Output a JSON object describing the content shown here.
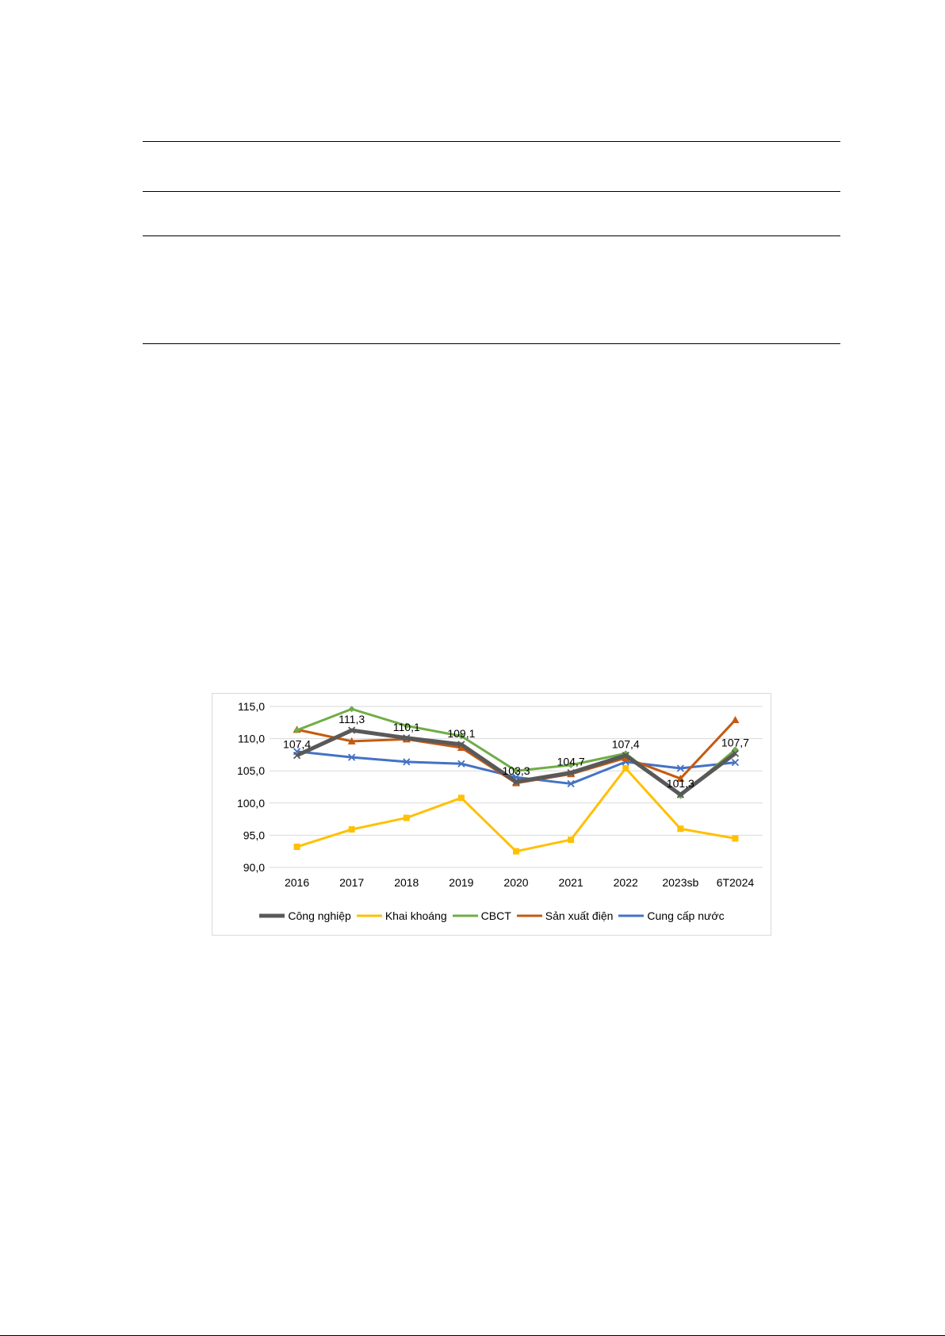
{
  "chart_data": {
    "type": "line",
    "categories": [
      "2016",
      "2017",
      "2018",
      "2019",
      "2020",
      "2021",
      "2022",
      "2023sb",
      "6T2024"
    ],
    "ylim": [
      90,
      115
    ],
    "yticks": [
      "90,0",
      "95,0",
      "100,0",
      "105,0",
      "110,0",
      "115,0"
    ],
    "grid": true,
    "legend_position": "bottom",
    "series": [
      {
        "name": "Công nghiệp",
        "color": "#595959",
        "marker": "x",
        "values": [
          107.4,
          111.3,
          110.1,
          109.1,
          103.3,
          104.7,
          107.4,
          101.3,
          107.7
        ],
        "labels": [
          "107,4",
          "111,3",
          "110,1",
          "109,1",
          "103,3",
          "104,7",
          "107,4",
          "101,3",
          "107,7"
        ]
      },
      {
        "name": "Khai khoáng",
        "color": "#ffc000",
        "marker": "square",
        "values": [
          93.2,
          95.9,
          97.7,
          100.8,
          92.5,
          94.3,
          105.4,
          96.0,
          94.5
        ]
      },
      {
        "name": "CBCT",
        "color": "#70ad47",
        "marker": "diamond",
        "values": [
          111.3,
          114.6,
          112.0,
          110.4,
          105.0,
          105.9,
          107.7,
          101.1,
          108.3
        ]
      },
      {
        "name": "Sản xuất điện",
        "color": "#c55a11",
        "marker": "triangle",
        "values": [
          111.4,
          109.6,
          109.9,
          108.6,
          103.1,
          104.5,
          107.0,
          103.8,
          112.9
        ]
      },
      {
        "name": "Cung cấp nước",
        "color": "#4472c4",
        "marker": "x",
        "values": [
          108.0,
          107.1,
          106.4,
          106.1,
          104.0,
          103.0,
          106.4,
          105.4,
          106.3
        ]
      }
    ]
  }
}
